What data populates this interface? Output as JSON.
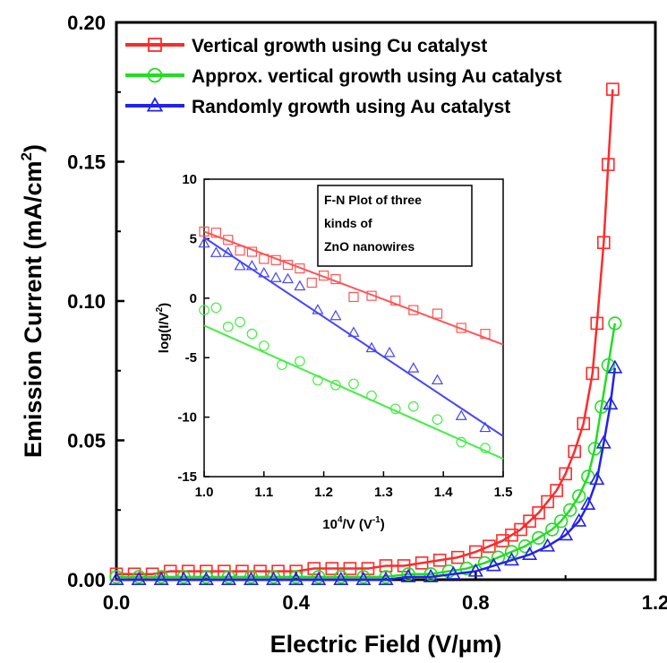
{
  "chart_data": [
    {
      "type": "scatter",
      "xlabel_prefix": "Electric Field (V/",
      "xlabel_mu": "µ",
      "xlabel_suffix": "m)",
      "ylabel_main": "Emission Current (mA/cm",
      "ylabel_sup": "2",
      "ylabel_end": ")",
      "xlim": [
        0.0,
        1.2
      ],
      "ylim": [
        0.0,
        0.2
      ],
      "x_ticks": [
        "0.0",
        "0.4",
        "0.8",
        "1.2"
      ],
      "y_ticks": [
        "0.00",
        "0.05",
        "0.10",
        "0.15",
        "0.20"
      ],
      "legend_position": "top-left",
      "series": [
        {
          "name": "Vertical growth using Cu catalyst",
          "color": "#ff2a2a",
          "marker": "square",
          "x": [
            0.0,
            0.04,
            0.08,
            0.12,
            0.16,
            0.2,
            0.24,
            0.28,
            0.32,
            0.36,
            0.4,
            0.44,
            0.48,
            0.52,
            0.56,
            0.6,
            0.64,
            0.68,
            0.72,
            0.76,
            0.8,
            0.83,
            0.86,
            0.88,
            0.9,
            0.92,
            0.94,
            0.96,
            0.98,
            1.0,
            1.02,
            1.04,
            1.06,
            1.07,
            1.085,
            1.095,
            1.105
          ],
          "y": [
            0.002,
            0.002,
            0.002,
            0.003,
            0.003,
            0.003,
            0.003,
            0.003,
            0.003,
            0.003,
            0.003,
            0.004,
            0.004,
            0.004,
            0.004,
            0.005,
            0.005,
            0.006,
            0.007,
            0.008,
            0.01,
            0.012,
            0.014,
            0.016,
            0.018,
            0.021,
            0.024,
            0.028,
            0.032,
            0.038,
            0.046,
            0.056,
            0.074,
            0.092,
            0.121,
            0.149,
            0.176
          ]
        },
        {
          "name": "Approx. vertical growth using Au catalyst",
          "color": "#22dd22",
          "marker": "circle",
          "x": [
            0.0,
            0.05,
            0.1,
            0.15,
            0.2,
            0.25,
            0.3,
            0.35,
            0.4,
            0.45,
            0.5,
            0.55,
            0.6,
            0.65,
            0.7,
            0.74,
            0.78,
            0.82,
            0.85,
            0.88,
            0.91,
            0.94,
            0.97,
            0.99,
            1.01,
            1.03,
            1.05,
            1.065,
            1.08,
            1.095,
            1.11
          ],
          "y": [
            0.001,
            0.001,
            0.001,
            0.001,
            0.001,
            0.001,
            0.001,
            0.001,
            0.001,
            0.001,
            0.001,
            0.001,
            0.001,
            0.002,
            0.002,
            0.003,
            0.004,
            0.006,
            0.008,
            0.01,
            0.012,
            0.015,
            0.018,
            0.021,
            0.025,
            0.03,
            0.037,
            0.047,
            0.062,
            0.077,
            0.092
          ]
        },
        {
          "name": "Randomly growth using Au catalyst",
          "color": "#2222ee",
          "marker": "triangle",
          "x": [
            0.0,
            0.05,
            0.1,
            0.15,
            0.2,
            0.25,
            0.3,
            0.35,
            0.4,
            0.45,
            0.5,
            0.55,
            0.6,
            0.65,
            0.7,
            0.75,
            0.8,
            0.84,
            0.88,
            0.92,
            0.96,
            1.0,
            1.03,
            1.05,
            1.07,
            1.085,
            1.1,
            1.11
          ],
          "y": [
            0.0,
            0.0,
            0.0,
            0.0,
            0.0,
            0.0,
            0.0,
            0.0,
            0.0,
            0.0,
            0.0,
            0.0,
            0.0,
            0.001,
            0.001,
            0.002,
            0.003,
            0.005,
            0.007,
            0.009,
            0.012,
            0.016,
            0.021,
            0.027,
            0.036,
            0.049,
            0.063,
            0.076
          ]
        }
      ]
    },
    {
      "type": "scatter",
      "title_lines": [
        "F-N Plot of three",
        "kinds of",
        "ZnO nanowires"
      ],
      "xlabel_base": "10",
      "xlabel_sup": "4",
      "xlabel_mid": "/V (V",
      "xlabel_sup2": "-1",
      "xlabel_end": ")",
      "ylabel_main": "log(I/V",
      "ylabel_sup": "2",
      "ylabel_end": ")",
      "xlim": [
        1.0,
        1.5
      ],
      "ylim": [
        -15,
        10
      ],
      "x_ticks": [
        "1.0",
        "1.1",
        "1.2",
        "1.3",
        "1.4",
        "1.5"
      ],
      "y_ticks": [
        "-15",
        "-10",
        "-5",
        "0",
        "5",
        "10"
      ],
      "series": [
        {
          "color": "#ff5555",
          "marker": "square",
          "x": [
            1.0,
            1.02,
            1.04,
            1.06,
            1.08,
            1.1,
            1.12,
            1.14,
            1.16,
            1.18,
            1.2,
            1.22,
            1.25,
            1.28,
            1.32,
            1.35,
            1.39,
            1.43,
            1.47
          ],
          "y": [
            5.6,
            5.5,
            4.9,
            4.0,
            3.9,
            3.3,
            3.2,
            2.8,
            2.5,
            1.3,
            1.9,
            1.6,
            0.1,
            0.2,
            -0.2,
            -1.0,
            -1.3,
            -2.5,
            -3.0
          ],
          "fit": [
            [
              1.0,
              5.6
            ],
            [
              1.5,
              -3.9
            ]
          ]
        },
        {
          "color": "#44ee44",
          "marker": "circle",
          "x": [
            1.0,
            1.02,
            1.04,
            1.06,
            1.08,
            1.1,
            1.13,
            1.16,
            1.19,
            1.22,
            1.25,
            1.28,
            1.32,
            1.35,
            1.39,
            1.43,
            1.47
          ],
          "y": [
            -1.0,
            -0.8,
            -2.4,
            -2.0,
            -3.0,
            -4.0,
            -5.6,
            -5.3,
            -6.9,
            -7.3,
            -7.2,
            -8.2,
            -9.3,
            -9.1,
            -10.2,
            -12.1,
            -12.6
          ],
          "fit": [
            [
              1.0,
              -2.3
            ],
            [
              1.5,
              -13.5
            ]
          ]
        },
        {
          "color": "#4444ff",
          "marker": "triangle",
          "x": [
            1.0,
            1.02,
            1.04,
            1.06,
            1.08,
            1.1,
            1.12,
            1.14,
            1.16,
            1.19,
            1.22,
            1.25,
            1.28,
            1.31,
            1.35,
            1.39,
            1.43,
            1.47
          ],
          "y": [
            4.6,
            3.8,
            3.8,
            2.7,
            2.7,
            2.1,
            1.7,
            1.6,
            1.0,
            -1.0,
            -1.5,
            -2.9,
            -4.2,
            -4.6,
            -5.9,
            -6.9,
            -9.9,
            -10.9
          ],
          "fit": [
            [
              1.0,
              5.1
            ],
            [
              1.5,
              -11.6
            ]
          ]
        }
      ]
    }
  ]
}
